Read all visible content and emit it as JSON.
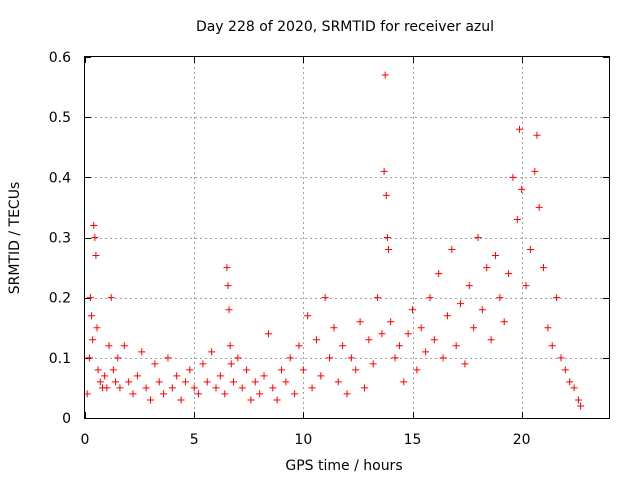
{
  "chart_data": {
    "type": "scatter",
    "title": "Day 228 of 2020, SRMTID for receiver azul",
    "xlabel": "GPS time / hours",
    "ylabel": "SRMTID / TECUs",
    "xlim": [
      0,
      24
    ],
    "ylim": [
      0,
      0.6
    ],
    "xticks": [
      0,
      5,
      10,
      15,
      20
    ],
    "xtick_labels": [
      "0",
      "5",
      "10",
      "15",
      "20"
    ],
    "yticks": [
      0,
      0.1,
      0.2,
      0.3,
      0.4,
      0.5,
      0.6
    ],
    "ytick_labels": [
      "0",
      "0.1",
      "0.2",
      "0.3",
      "0.4",
      "0.5",
      "0.6"
    ],
    "grid": true,
    "marker": "+",
    "color": "#ff0000",
    "series": [
      {
        "name": "SRMTID",
        "x": [
          0.1,
          0.2,
          0.25,
          0.3,
          0.35,
          0.4,
          0.45,
          0.5,
          0.55,
          0.6,
          0.7,
          0.8,
          0.9,
          1.0,
          1.1,
          1.2,
          1.3,
          1.4,
          1.5,
          1.6,
          1.8,
          2.0,
          2.2,
          2.4,
          2.6,
          2.8,
          3.0,
          3.2,
          3.4,
          3.6,
          3.8,
          4.0,
          4.2,
          4.4,
          4.6,
          4.8,
          5.0,
          5.2,
          5.4,
          5.6,
          5.8,
          6.0,
          6.2,
          6.4,
          6.5,
          6.55,
          6.6,
          6.65,
          6.7,
          6.8,
          7.0,
          7.2,
          7.4,
          7.6,
          7.8,
          8.0,
          8.2,
          8.4,
          8.6,
          8.8,
          9.0,
          9.2,
          9.4,
          9.6,
          9.8,
          10.0,
          10.2,
          10.4,
          10.6,
          10.8,
          11.0,
          11.2,
          11.4,
          11.6,
          11.8,
          12.0,
          12.2,
          12.4,
          12.6,
          12.8,
          13.0,
          13.2,
          13.4,
          13.6,
          13.7,
          13.75,
          13.8,
          13.85,
          13.9,
          14.0,
          14.2,
          14.4,
          14.6,
          14.8,
          15.0,
          15.2,
          15.4,
          15.6,
          15.8,
          16.0,
          16.2,
          16.4,
          16.6,
          16.8,
          17.0,
          17.2,
          17.4,
          17.6,
          17.8,
          18.0,
          18.2,
          18.4,
          18.6,
          18.8,
          19.0,
          19.2,
          19.4,
          19.6,
          19.8,
          19.9,
          20.0,
          20.2,
          20.4,
          20.6,
          20.7,
          20.8,
          21.0,
          21.2,
          21.4,
          21.6,
          21.8,
          22.0,
          22.2,
          22.4,
          22.6,
          22.7
        ],
        "y": [
          0.04,
          0.1,
          0.2,
          0.17,
          0.13,
          0.32,
          0.3,
          0.27,
          0.15,
          0.08,
          0.06,
          0.05,
          0.07,
          0.05,
          0.12,
          0.2,
          0.08,
          0.06,
          0.1,
          0.05,
          0.12,
          0.06,
          0.04,
          0.07,
          0.11,
          0.05,
          0.03,
          0.09,
          0.06,
          0.04,
          0.1,
          0.05,
          0.07,
          0.03,
          0.06,
          0.08,
          0.05,
          0.04,
          0.09,
          0.06,
          0.11,
          0.05,
          0.07,
          0.04,
          0.25,
          0.22,
          0.18,
          0.12,
          0.09,
          0.06,
          0.1,
          0.05,
          0.08,
          0.03,
          0.06,
          0.04,
          0.07,
          0.14,
          0.05,
          0.03,
          0.08,
          0.06,
          0.1,
          0.04,
          0.12,
          0.08,
          0.17,
          0.05,
          0.13,
          0.07,
          0.2,
          0.1,
          0.15,
          0.06,
          0.12,
          0.04,
          0.1,
          0.08,
          0.16,
          0.05,
          0.13,
          0.09,
          0.2,
          0.14,
          0.41,
          0.57,
          0.37,
          0.3,
          0.28,
          0.16,
          0.1,
          0.12,
          0.06,
          0.14,
          0.18,
          0.08,
          0.15,
          0.11,
          0.2,
          0.13,
          0.24,
          0.1,
          0.17,
          0.28,
          0.12,
          0.19,
          0.09,
          0.22,
          0.15,
          0.3,
          0.18,
          0.25,
          0.13,
          0.27,
          0.2,
          0.16,
          0.24,
          0.4,
          0.33,
          0.48,
          0.38,
          0.22,
          0.28,
          0.41,
          0.47,
          0.35,
          0.25,
          0.15,
          0.12,
          0.2,
          0.1,
          0.08,
          0.06,
          0.05,
          0.03,
          0.02
        ]
      }
    ]
  }
}
